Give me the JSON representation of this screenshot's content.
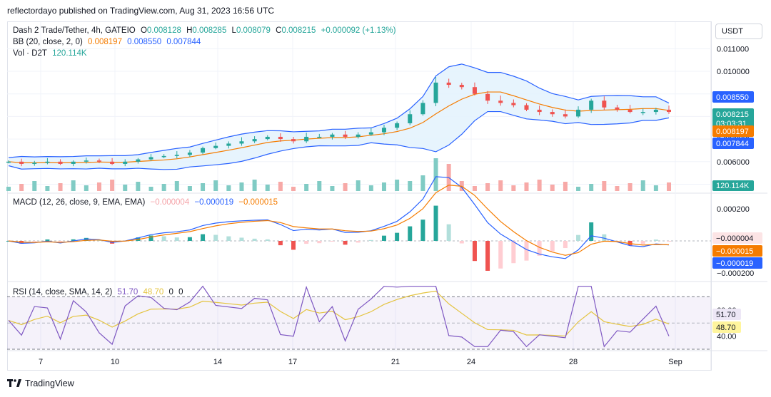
{
  "header": {
    "publisher_line": "reflectordayo published on TradingView.com, Aug 31, 2023 16:56 UTC",
    "symbol": "Dash 2 Trade/Tether, 4h, GATEIO",
    "ohlc": {
      "o_label": "O",
      "o": "0.008128",
      "h_label": "H",
      "h": "0.008285",
      "l_label": "L",
      "l": "0.008079",
      "c_label": "C",
      "c": "0.008215",
      "change": "+0.000092 (+1.13%)"
    },
    "bb": {
      "label": "BB (20, close, 2, 0)",
      "basis": "0.008197",
      "upper": "0.008550",
      "lower": "0.007844"
    },
    "vol": {
      "label": "Vol · D2T",
      "value": "120.114K"
    },
    "currency_button": "USDT"
  },
  "macd_legend": {
    "label": "MACD (12, 26, close, 9, EMA, EMA)",
    "hist": "−0.000004",
    "macd": "−0.000019",
    "signal": "−0.000015"
  },
  "rsi_legend": {
    "label": "RSI (14, close, SMA, 14, 2)",
    "rsi": "51.70",
    "ma": "48.70",
    "a": "0",
    "b": "0"
  },
  "price_axis": {
    "ticks": [
      "0.011000",
      "0.010000",
      "0.009000",
      "0.007000",
      "0.006000",
      "0.005000"
    ]
  },
  "price_badges": [
    {
      "text": "0.008550",
      "color": "#2962ff"
    },
    {
      "text": "0.008215\n03:03:31",
      "color": "#26a69a"
    },
    {
      "text": "0.008197",
      "color": "#f57c00"
    },
    {
      "text": "0.007844",
      "color": "#2962ff"
    },
    {
      "text": "120.114K",
      "color": "#26a69a"
    }
  ],
  "macd_axis": {
    "ticks": [
      "0.000200",
      "−0.000200"
    ]
  },
  "macd_badges": [
    {
      "text": "−0.000004",
      "color": "#fce4e5",
      "fg": "#131722"
    },
    {
      "text": "−0.000015",
      "color": "#f57c00",
      "fg": "#ffffff"
    },
    {
      "text": "−0.000019",
      "color": "#2962ff",
      "fg": "#ffffff"
    }
  ],
  "rsi_axis": {
    "ticks": [
      "60.00",
      "40.00"
    ]
  },
  "rsi_badges": [
    {
      "text": "51.70",
      "color": "#ede7f6",
      "fg": "#131722"
    },
    {
      "text": "48.70",
      "color": "#fff59d",
      "fg": "#131722"
    }
  ],
  "time_axis": {
    "ticks": [
      "7",
      "10",
      "14",
      "17",
      "21",
      "24",
      "28",
      "Sep"
    ]
  },
  "brand": {
    "name": "TradingView",
    "icon": "tradingview-logo-icon"
  },
  "colors": {
    "up": "#26a69a",
    "down": "#ef5350",
    "bb_band": "#2962ff",
    "bb_basis": "#f57c00",
    "macd": "#2962ff",
    "signal": "#f57c00",
    "rsi": "#7e57c2",
    "rsi_ma": "#e4c441"
  },
  "chart_data": [
    {
      "type": "candlestick",
      "title": "Dash 2 Trade/Tether, 4h, GATEIO",
      "y_range": [
        0.0047,
        0.0112
      ],
      "x_ticks": [
        "7",
        "10",
        "14",
        "17",
        "21",
        "24",
        "28",
        "Sep"
      ],
      "series": [
        {
          "name": "Price (close, approx.)",
          "values": [
            0.006,
            0.0059,
            0.00595,
            0.006,
            0.0059,
            0.006,
            0.00605,
            0.006,
            0.0059,
            0.006,
            0.0061,
            0.0062,
            0.00625,
            0.0063,
            0.0064,
            0.0066,
            0.0067,
            0.0068,
            0.0069,
            0.007,
            0.0071,
            0.007,
            0.0069,
            0.0071,
            0.0071,
            0.0072,
            0.0071,
            0.0072,
            0.0073,
            0.0075,
            0.0077,
            0.0081,
            0.0086,
            0.0095,
            0.0094,
            0.0093,
            0.009,
            0.0087,
            0.0086,
            0.0085,
            0.0083,
            0.0082,
            0.0081,
            0.008,
            0.0083,
            0.0087,
            0.0084,
            0.0083,
            0.0082,
            0.0082,
            0.0083,
            0.0082
          ]
        },
        {
          "name": "BB (20, close, 2, 0)",
          "basis": "0.008197",
          "upper": "0.008550",
          "lower": "0.007844"
        }
      ],
      "volume_last": "120.114K"
    },
    {
      "type": "line",
      "title": "MACD (12, 26, close, 9, EMA, EMA)",
      "y_range": [
        -0.00024,
        0.00028
      ],
      "series": [
        {
          "name": "MACD",
          "last": -1.9e-05
        },
        {
          "name": "Signal",
          "last": -1.5e-05
        },
        {
          "name": "Histogram",
          "last": -4e-06
        }
      ]
    },
    {
      "type": "line",
      "title": "RSI (14, close, SMA, 14, 2)",
      "y_range": [
        30,
        80
      ],
      "series": [
        {
          "name": "RSI",
          "last": 51.7
        },
        {
          "name": "RSI-based MA",
          "last": 48.7
        }
      ]
    }
  ]
}
